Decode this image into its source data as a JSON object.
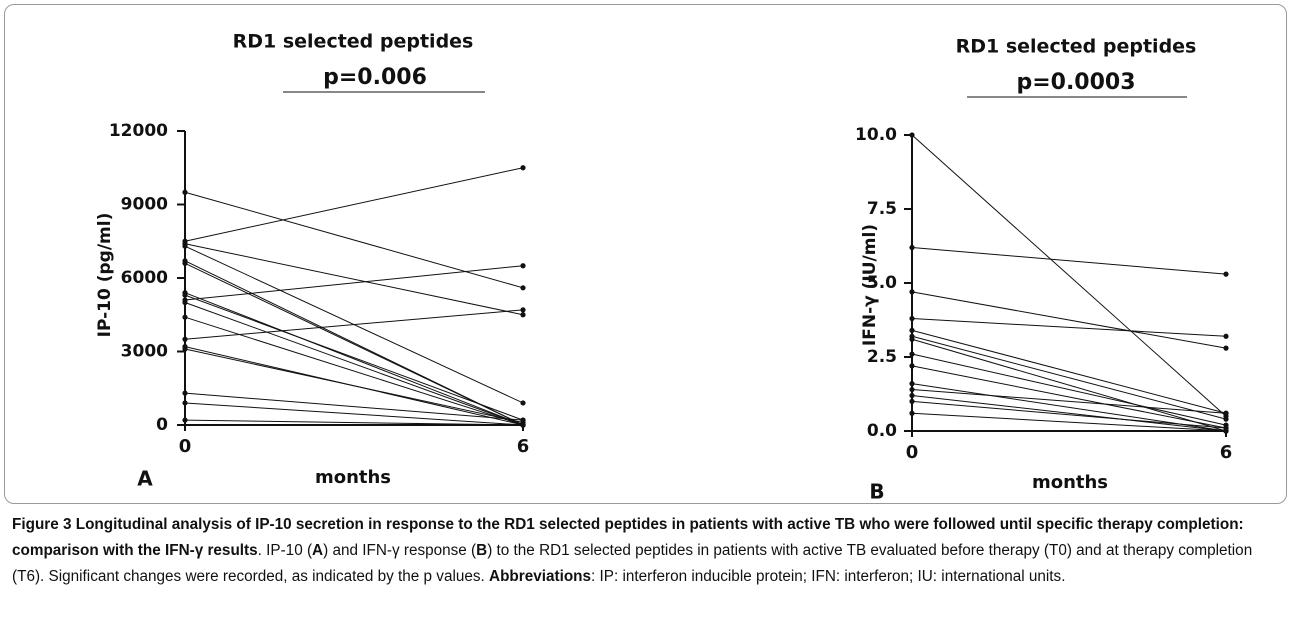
{
  "chart_data": [
    {
      "type": "line",
      "title": "RD1 selected peptides",
      "p_value_text": "p=0.006",
      "panel_label": "A",
      "x_label": "months",
      "y_label": "IP-10 (pg/ml)",
      "color": "#111111",
      "x": [
        0,
        6
      ],
      "xlim": [
        0,
        6
      ],
      "xticks": [
        0,
        6
      ],
      "ylim": [
        0,
        12000
      ],
      "yticks": [
        0,
        3000,
        6000,
        9000,
        12000
      ],
      "series": [
        {
          "values": [
            9500,
            5600
          ]
        },
        {
          "values": [
            7500,
            10500
          ]
        },
        {
          "values": [
            7400,
            4500
          ]
        },
        {
          "values": [
            7300,
            900
          ]
        },
        {
          "values": [
            6700,
            0
          ]
        },
        {
          "values": [
            6600,
            0
          ]
        },
        {
          "values": [
            5100,
            6500
          ]
        },
        {
          "values": [
            3500,
            4700
          ]
        },
        {
          "values": [
            5400,
            0
          ]
        },
        {
          "values": [
            5300,
            200
          ]
        },
        {
          "values": [
            5000,
            0
          ]
        },
        {
          "values": [
            4400,
            0
          ]
        },
        {
          "values": [
            3200,
            0
          ]
        },
        {
          "values": [
            3100,
            100
          ]
        },
        {
          "values": [
            1300,
            200
          ]
        },
        {
          "values": [
            900,
            0
          ]
        },
        {
          "values": [
            200,
            0
          ]
        }
      ]
    },
    {
      "type": "line",
      "title": "RD1 selected peptides",
      "p_value_text": "p=0.0003",
      "panel_label": "B",
      "x_label": "months",
      "y_label": "IFN-γ (IU/ml)",
      "color": "#111111",
      "x": [
        0,
        6
      ],
      "xlim": [
        0,
        6
      ],
      "xticks": [
        0,
        6
      ],
      "ylim": [
        0,
        10
      ],
      "yticks": [
        {
          "value": 0,
          "label": "0.0"
        },
        2.5,
        {
          "value": 5,
          "label": "5.0"
        },
        7.5,
        {
          "value": 10,
          "label": "10.0"
        }
      ],
      "series": [
        {
          "values": [
            10,
            0.5
          ]
        },
        {
          "values": [
            6.2,
            5.3
          ]
        },
        {
          "values": [
            4.7,
            2.8
          ]
        },
        {
          "values": [
            3.8,
            3.2
          ]
        },
        {
          "values": [
            3.4,
            0.6
          ]
        },
        {
          "values": [
            3.2,
            0.4
          ]
        },
        {
          "values": [
            3.1,
            0
          ]
        },
        {
          "values": [
            2.6,
            0.2
          ]
        },
        {
          "values": [
            2.2,
            0.1
          ]
        },
        {
          "values": [
            1.6,
            0
          ]
        },
        {
          "values": [
            1.4,
            0.6
          ]
        },
        {
          "values": [
            1.2,
            0
          ]
        },
        {
          "values": [
            1.0,
            0.1
          ]
        },
        {
          "values": [
            0.6,
            0
          ]
        }
      ]
    }
  ],
  "caption": [
    {
      "text": "Figure 3 Longitudinal analysis of IP-10 secretion in response to the RD1 selected peptides in patients with active TB who were followed until specific therapy completion: comparison with the IFN-γ results",
      "bold": true
    },
    {
      "text": ". IP-10 (",
      "bold": false
    },
    {
      "text": "A",
      "bold": true
    },
    {
      "text": ") and IFN-γ response (",
      "bold": false
    },
    {
      "text": "B",
      "bold": true
    },
    {
      "text": ") to the RD1 selected peptides in patients with active TB evaluated before therapy (T0) and at therapy completion (T6). Significant changes were recorded, as indicated by the p values. ",
      "bold": false
    },
    {
      "text": "Abbreviations",
      "bold": true
    },
    {
      "text": ": IP: interferon inducible protein; IFN: interferon; IU: international units.",
      "bold": false
    }
  ]
}
